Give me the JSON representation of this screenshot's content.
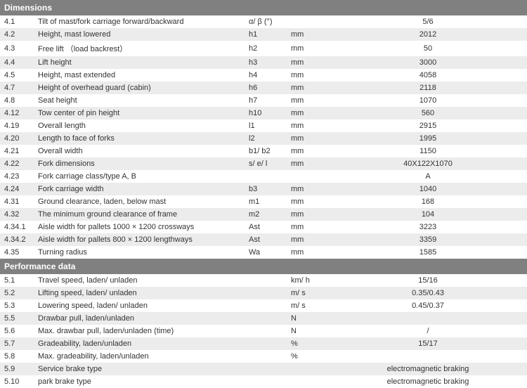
{
  "sections": [
    {
      "title": "Dimensions",
      "rows": [
        {
          "code": "4.1",
          "desc": "Tilt of mast/fork carriage forward/backward",
          "sym": "α/ β (°)",
          "unit": "",
          "val": "5/6"
        },
        {
          "code": "4.2",
          "desc": "Height, mast lowered",
          "sym": "h1",
          "unit": "mm",
          "val": "2012"
        },
        {
          "code": "4.3",
          "desc": "Free lift （load backrest）",
          "sym": "h2",
          "unit": "mm",
          "val": "50"
        },
        {
          "code": "4.4",
          "desc": "Lift height",
          "sym": "h3",
          "unit": "mm",
          "val": "3000"
        },
        {
          "code": "4.5",
          "desc": "Height, mast extended",
          "sym": "h4",
          "unit": "mm",
          "val": "4058"
        },
        {
          "code": "4.7",
          "desc": "Height of overhead guard (cabin)",
          "sym": "h6",
          "unit": "mm",
          "val": "2118"
        },
        {
          "code": "4.8",
          "desc": "Seat height",
          "sym": "h7",
          "unit": "mm",
          "val": "1070"
        },
        {
          "code": "4.12",
          "desc": "Tow center of pin height",
          "sym": "h10",
          "unit": "mm",
          "val": "560"
        },
        {
          "code": "4.19",
          "desc": "Overall length",
          "sym": "l1",
          "unit": "mm",
          "val": "2915"
        },
        {
          "code": "4.20",
          "desc": "Length to face of forks",
          "sym": "l2",
          "unit": "mm",
          "val": "1995"
        },
        {
          "code": "4.21",
          "desc": "Overall width",
          "sym": "b1/ b2",
          "unit": "mm",
          "val": "1150"
        },
        {
          "code": "4.22",
          "desc": "Fork dimensions",
          "sym": "s/ e/ l",
          "unit": "mm",
          "val": "40X122X1070"
        },
        {
          "code": "4.23",
          "desc": "Fork carriage class/type A, B",
          "sym": "",
          "unit": "",
          "val": "A"
        },
        {
          "code": "4.24",
          "desc": "Fork carriage width",
          "sym": "b3",
          "unit": "mm",
          "val": "1040"
        },
        {
          "code": "4.31",
          "desc": "Ground clearance, laden, below mast",
          "sym": "m1",
          "unit": "mm",
          "val": "168"
        },
        {
          "code": "4.32",
          "desc": "The minimum ground clearance of frame",
          "sym": "m2",
          "unit": "mm",
          "val": "104"
        },
        {
          "code": "4.34.1",
          "desc": "Aisle width for pallets 1000 × 1200 crossways",
          "sym": "Ast",
          "unit": "mm",
          "val": "3223"
        },
        {
          "code": "4.34.2",
          "desc": "Aisle width for pallets 800 × 1200 lengthways",
          "sym": "Ast",
          "unit": "mm",
          "val": "3359"
        },
        {
          "code": "4.35",
          "desc": "Turning radius",
          "sym": "Wa",
          "unit": "mm",
          "val": "1585"
        }
      ]
    },
    {
      "title": "Performance data",
      "rows": [
        {
          "code": "5.1",
          "desc": "Travel speed, laden/ unladen",
          "sym": "",
          "unit": "km/ h",
          "val": "15/16"
        },
        {
          "code": "5.2",
          "desc": "Lifting speed, laden/ unladen",
          "sym": "",
          "unit": "m/ s",
          "val": "0.35/0.43"
        },
        {
          "code": "5.3",
          "desc": "Lowering speed, laden/ unladen",
          "sym": "",
          "unit": "m/ s",
          "val": "0.45/0.37"
        },
        {
          "code": "5.5",
          "desc": "Drawbar pull, laden/unladen",
          "sym": "",
          "unit": "N",
          "val": ""
        },
        {
          "code": "5.6",
          "desc": "Max. drawbar pull, laden/unladen (time)",
          "sym": "",
          "unit": "N",
          "val": "/"
        },
        {
          "code": "5.7",
          "desc": "Gradeability, laden/unladen",
          "sym": "",
          "unit": "%",
          "val": "15/17"
        },
        {
          "code": "5.8",
          "desc": "Max. gradeability, laden/unladen",
          "sym": "",
          "unit": "%",
          "val": ""
        },
        {
          "code": "5.9",
          "desc": "Service brake type",
          "sym": "",
          "unit": "",
          "val": "electromagnetic braking"
        },
        {
          "code": "5.10",
          "desc": "park brake type",
          "sym": "",
          "unit": "",
          "val": "electromagnetic braking"
        }
      ]
    }
  ]
}
